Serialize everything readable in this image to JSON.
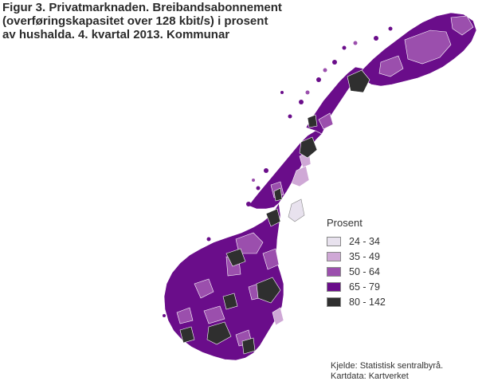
{
  "title_lines": [
    "Figur 3. Privatmarknaden. Breibandsabonnement",
    "(overføringskapasitet over 128 kbit/s) i prosent",
    "av hushalda. 4. kvartal 2013. Kommunar"
  ],
  "legend": {
    "title": "Prosent",
    "classes": [
      {
        "label": "24 - 34",
        "color": "#e8e2ee"
      },
      {
        "label": "35 - 49",
        "color": "#cfa8d6"
      },
      {
        "label": "50 - 64",
        "color": "#9b4fad"
      },
      {
        "label": "65 - 79",
        "color": "#6a0d8a"
      },
      {
        "label": "80 - 142",
        "color": "#2f2f2f"
      }
    ]
  },
  "source_lines": [
    "Kjelde: Statistisk sentralbyrå.",
    "Kartdata: Kartverket"
  ]
}
